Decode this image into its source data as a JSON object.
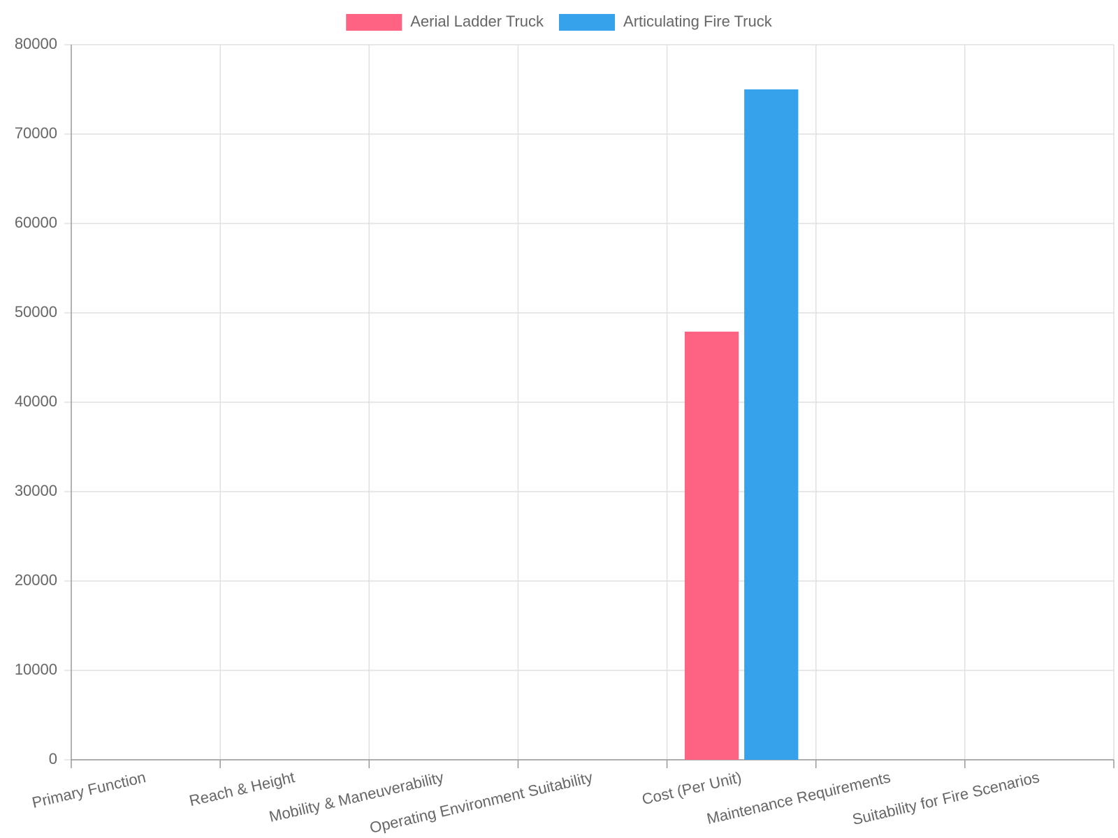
{
  "chart_data": {
    "type": "bar",
    "categories": [
      "Primary Function",
      "Reach & Height",
      "Mobility & Maneuverability",
      "Operating Environment Suitability",
      "Cost (Per Unit)",
      "Maintenance Requirements",
      "Suitability for Fire Scenarios"
    ],
    "series": [
      {
        "name": "Aerial Ladder Truck",
        "color": "#ff6384",
        "values": [
          null,
          null,
          null,
          null,
          47900,
          null,
          null
        ]
      },
      {
        "name": "Articulating Fire Truck",
        "color": "#36a2eb",
        "values": [
          null,
          null,
          null,
          null,
          75000,
          null,
          null
        ]
      }
    ],
    "ylim": [
      0,
      80000
    ],
    "yticks": [
      0,
      10000,
      20000,
      30000,
      40000,
      50000,
      60000,
      70000,
      80000
    ],
    "grid": true,
    "legend": "top"
  }
}
